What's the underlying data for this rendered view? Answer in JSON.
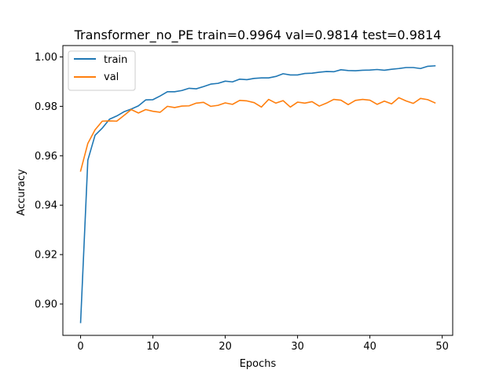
{
  "chart_data": {
    "type": "line",
    "title": "Transformer_no_PE train=0.9964 val=0.9814 test=0.9814",
    "xlabel": "Epochs",
    "ylabel": "Accuracy",
    "xlim": [
      -2.45,
      51.45
    ],
    "ylim": [
      0.8873,
      1.0046
    ],
    "xticks": [
      0,
      10,
      20,
      30,
      40,
      50
    ],
    "yticks": [
      0.9,
      0.92,
      0.94,
      0.96,
      0.98,
      1.0
    ],
    "xtick_labels": [
      "0",
      "10",
      "20",
      "30",
      "40",
      "50"
    ],
    "ytick_labels": [
      "0.90",
      "0.92",
      "0.94",
      "0.96",
      "0.98",
      "1.00"
    ],
    "grid": false,
    "legend_position": "top-left",
    "series": [
      {
        "name": "train",
        "color": "#1f77b4",
        "x": [
          0,
          1,
          2,
          3,
          4,
          5,
          6,
          7,
          8,
          9,
          10,
          11,
          12,
          13,
          14,
          15,
          16,
          17,
          18,
          19,
          20,
          21,
          22,
          23,
          24,
          25,
          26,
          27,
          28,
          29,
          30,
          31,
          32,
          33,
          34,
          35,
          36,
          37,
          38,
          39,
          40,
          41,
          42,
          43,
          44,
          45,
          46,
          47,
          48,
          49
        ],
        "values": [
          0.8925,
          0.9582,
          0.9683,
          0.9712,
          0.9748,
          0.9761,
          0.9778,
          0.9789,
          0.9802,
          0.9826,
          0.9827,
          0.9842,
          0.9859,
          0.9859,
          0.9864,
          0.9873,
          0.9871,
          0.988,
          0.989,
          0.9893,
          0.9902,
          0.9899,
          0.991,
          0.9908,
          0.9913,
          0.9915,
          0.9915,
          0.9921,
          0.9932,
          0.9927,
          0.9927,
          0.9933,
          0.9934,
          0.9938,
          0.9941,
          0.994,
          0.9948,
          0.9945,
          0.9944,
          0.9946,
          0.9947,
          0.9949,
          0.9946,
          0.995,
          0.9953,
          0.9957,
          0.9957,
          0.9953,
          0.9962,
          0.9964
        ]
      },
      {
        "name": "val",
        "color": "#ff7f0e",
        "x": [
          0,
          1,
          2,
          3,
          4,
          5,
          6,
          7,
          8,
          9,
          10,
          11,
          12,
          13,
          14,
          15,
          16,
          17,
          18,
          19,
          20,
          21,
          22,
          23,
          24,
          25,
          26,
          27,
          28,
          29,
          30,
          31,
          32,
          33,
          34,
          35,
          36,
          37,
          38,
          39,
          40,
          41,
          42,
          43,
          44,
          45,
          46,
          47,
          48,
          49
        ],
        "values": [
          0.9538,
          0.965,
          0.9705,
          0.974,
          0.9741,
          0.974,
          0.9763,
          0.9787,
          0.9773,
          0.9787,
          0.978,
          0.9776,
          0.98,
          0.9795,
          0.9801,
          0.9802,
          0.9813,
          0.9816,
          0.98,
          0.9804,
          0.9814,
          0.9808,
          0.9824,
          0.9822,
          0.9815,
          0.9797,
          0.9828,
          0.9813,
          0.9823,
          0.9797,
          0.9817,
          0.9813,
          0.9819,
          0.9801,
          0.9813,
          0.9828,
          0.9825,
          0.9807,
          0.9824,
          0.9828,
          0.9825,
          0.9808,
          0.9821,
          0.981,
          0.9835,
          0.9822,
          0.9812,
          0.9832,
          0.9827,
          0.9814
        ]
      }
    ]
  }
}
